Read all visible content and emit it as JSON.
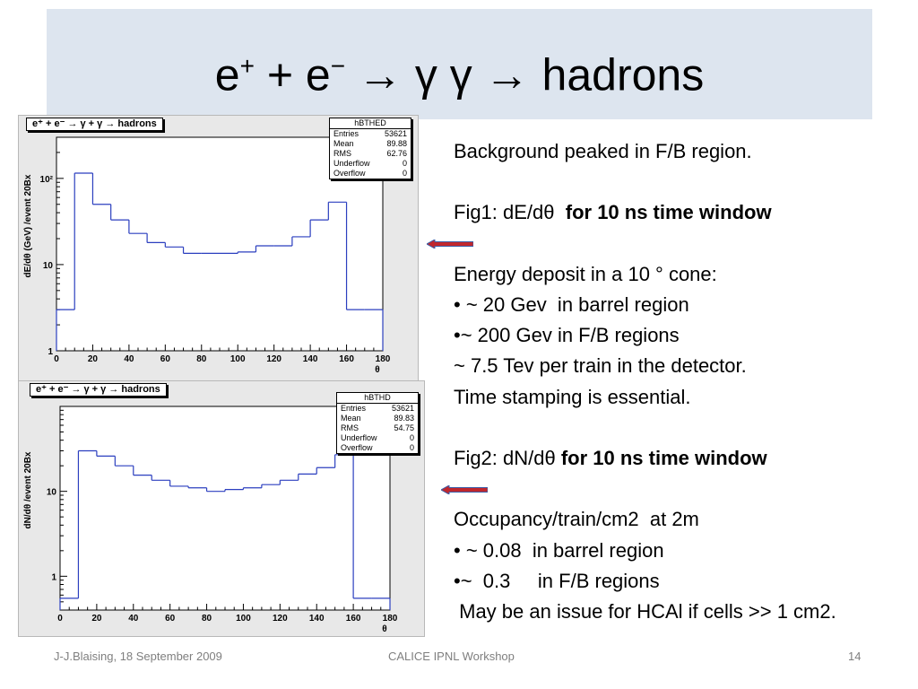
{
  "slide": {
    "title_lhs": "e",
    "title_plus_sup": "+",
    "title_mid": " + e",
    "title_minus_sup": "−",
    "title_rhs": " → γ γ → hadrons"
  },
  "text_lines": [
    {
      "text": "Background peaked in F/B region.",
      "bold": ""
    },
    {
      "text": "",
      "bold": ""
    },
    {
      "text": "Fig1: dE/dθ  ",
      "bold": "for 10 ns time window"
    },
    {
      "text": "",
      "bold": ""
    },
    {
      "text": "Energy deposit in a 10 ° cone:",
      "bold": ""
    },
    {
      "text": "• ~ 20 Gev  in barrel region",
      "bold": ""
    },
    {
      "text": "•~ 200 Gev in F/B regions",
      "bold": ""
    },
    {
      "text": "~ 7.5 Tev per train in the detector.",
      "bold": ""
    },
    {
      "text": "Time stamping is essential.",
      "bold": ""
    },
    {
      "text": "",
      "bold": ""
    },
    {
      "text": "Fig2: dN/dθ ",
      "bold": "for 10 ns time window"
    },
    {
      "text": "",
      "bold": ""
    },
    {
      "text": "Occupancy/train/cm2  at 2m",
      "bold": ""
    },
    {
      "text": "• ~ 0.08  in barrel region",
      "bold": ""
    },
    {
      "text": "•~  0.3     in F/B regions",
      "bold": ""
    },
    {
      "text": " May be an issue for HCAl if cells >> 1 cm2.",
      "bold": ""
    }
  ],
  "footer": {
    "author": "J-J.Blaising, 18 September 2009",
    "event": "CALICE IPNL Workshop",
    "page": "14"
  },
  "colors": {
    "title_band": "#dde5ef",
    "histogram_line": "#2b3fbf",
    "arrow_fill": "#c0272d",
    "arrow_outline": "#3b5ea8"
  },
  "chart_data": [
    {
      "type": "histogram",
      "label": "e⁺ + e⁻ → γ + γ → hadrons",
      "ylabel": "dE/dθ (GeV) /event  20Bx",
      "xlabel": "θ",
      "xlim": [
        0,
        180
      ],
      "ylim": [
        1,
        300
      ],
      "log_y": true,
      "x_ticks": [
        "0",
        "20",
        "40",
        "60",
        "80",
        "100",
        "120",
        "140",
        "160",
        "180"
      ],
      "y_ticks": [
        {
          "value": 1,
          "label": "1"
        },
        {
          "value": 10,
          "label": "10"
        },
        {
          "value": 100,
          "label": "10²"
        }
      ],
      "bin_edges": [
        0,
        10,
        20,
        30,
        40,
        50,
        60,
        70,
        80,
        90,
        100,
        110,
        120,
        130,
        140,
        150,
        160,
        170,
        180
      ],
      "values": [
        3.0,
        115,
        50,
        33,
        23,
        18,
        16,
        13.5,
        13.5,
        13.5,
        14,
        16.5,
        16.5,
        21,
        33,
        53,
        3.0,
        3.0
      ],
      "stats": {
        "name": "hBTHED",
        "rows": [
          [
            "Entries",
            "53621"
          ],
          [
            "Mean",
            "89.88"
          ],
          [
            "RMS",
            "62.76"
          ],
          [
            "Underflow",
            "0"
          ],
          [
            "Overflow",
            "0"
          ]
        ]
      }
    },
    {
      "type": "histogram",
      "label": "e⁺ + e⁻ → γ + γ → hadrons",
      "ylabel": "dN/dθ /event  20Bx",
      "xlabel": "θ",
      "xlim": [
        0,
        180
      ],
      "ylim": [
        0.4,
        100
      ],
      "log_y": true,
      "x_ticks": [
        "0",
        "20",
        "40",
        "60",
        "80",
        "100",
        "120",
        "140",
        "160",
        "180"
      ],
      "y_ticks": [
        {
          "value": 1,
          "label": "1"
        },
        {
          "value": 10,
          "label": "10"
        }
      ],
      "bin_edges": [
        0,
        10,
        20,
        30,
        40,
        50,
        60,
        70,
        80,
        90,
        100,
        110,
        120,
        130,
        140,
        150,
        160,
        170,
        180
      ],
      "values": [
        0.55,
        30,
        26,
        20,
        15.5,
        13.5,
        11.5,
        11,
        10,
        10.5,
        11,
        12,
        13.5,
        16,
        19,
        27,
        0.55,
        0.55
      ],
      "stats": {
        "name": "hBTHD",
        "rows": [
          [
            "Entries",
            "53621"
          ],
          [
            "Mean",
            "89.83"
          ],
          [
            "RMS",
            "54.75"
          ],
          [
            "Underflow",
            "0"
          ],
          [
            "Overflow",
            "0"
          ]
        ]
      }
    }
  ]
}
